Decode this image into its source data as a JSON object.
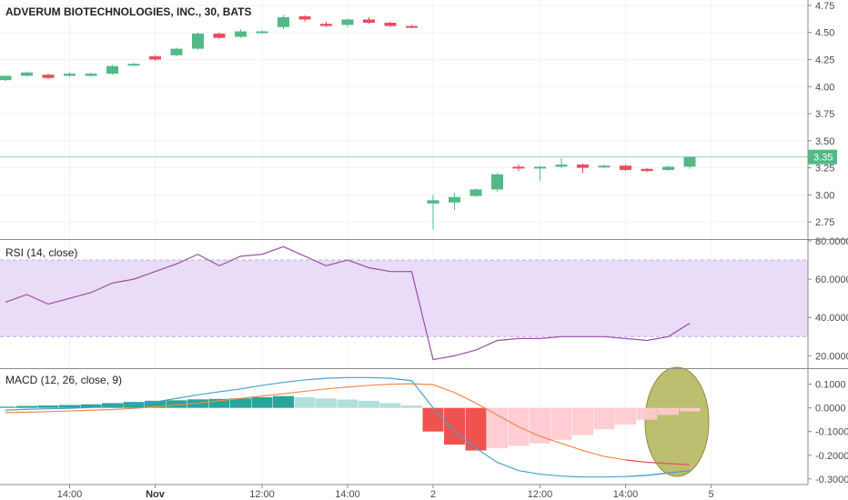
{
  "chart_data": [
    {
      "type": "candlestick",
      "title": "ADVERUM BIOTECHNOLOGIES, INC., 30, BATS",
      "ylim": [
        2.6,
        4.8
      ],
      "y_ticks": [
        "2.75",
        "3.00",
        "3.25",
        "3.50",
        "3.75",
        "4.00",
        "4.25",
        "4.50",
        "4.75"
      ],
      "last_price_label": "3.35",
      "last_price": 3.35,
      "candles": [
        {
          "o": 4.06,
          "h": 4.1,
          "l": 4.05,
          "c": 4.1
        },
        {
          "o": 4.1,
          "h": 4.14,
          "l": 4.09,
          "c": 4.13
        },
        {
          "o": 4.11,
          "h": 4.12,
          "l": 4.07,
          "c": 4.08
        },
        {
          "o": 4.1,
          "h": 4.13,
          "l": 4.09,
          "c": 4.12
        },
        {
          "o": 4.1,
          "h": 4.13,
          "l": 4.09,
          "c": 4.12
        },
        {
          "o": 4.12,
          "h": 4.2,
          "l": 4.11,
          "c": 4.19
        },
        {
          "o": 4.2,
          "h": 4.22,
          "l": 4.19,
          "c": 4.21
        },
        {
          "o": 4.28,
          "h": 4.29,
          "l": 4.24,
          "c": 4.25
        },
        {
          "o": 4.29,
          "h": 4.36,
          "l": 4.28,
          "c": 4.35
        },
        {
          "o": 4.35,
          "h": 4.5,
          "l": 4.34,
          "c": 4.49
        },
        {
          "o": 4.49,
          "h": 4.5,
          "l": 4.44,
          "c": 4.45
        },
        {
          "o": 4.46,
          "h": 4.53,
          "l": 4.45,
          "c": 4.51
        },
        {
          "o": 4.5,
          "h": 4.52,
          "l": 4.49,
          "c": 4.51
        },
        {
          "o": 4.55,
          "h": 4.66,
          "l": 4.53,
          "c": 4.64
        },
        {
          "o": 4.65,
          "h": 4.66,
          "l": 4.6,
          "c": 4.62
        },
        {
          "o": 4.58,
          "h": 4.6,
          "l": 4.55,
          "c": 4.56
        },
        {
          "o": 4.57,
          "h": 4.63,
          "l": 4.55,
          "c": 4.62
        },
        {
          "o": 4.62,
          "h": 4.64,
          "l": 4.58,
          "c": 4.59
        },
        {
          "o": 4.59,
          "h": 4.6,
          "l": 4.55,
          "c": 4.56
        },
        {
          "o": 4.56,
          "h": 4.57,
          "l": 4.54,
          "c": 4.55
        },
        {
          "o": 2.92,
          "h": 3.0,
          "l": 2.68,
          "c": 2.95
        },
        {
          "o": 2.93,
          "h": 3.02,
          "l": 2.86,
          "c": 2.98
        },
        {
          "o": 2.99,
          "h": 3.06,
          "l": 2.98,
          "c": 3.05
        },
        {
          "o": 3.05,
          "h": 3.2,
          "l": 3.03,
          "c": 3.19
        },
        {
          "o": 3.26,
          "h": 3.28,
          "l": 3.22,
          "c": 3.25
        },
        {
          "o": 3.25,
          "h": 3.27,
          "l": 3.13,
          "c": 3.26
        },
        {
          "o": 3.26,
          "h": 3.34,
          "l": 3.25,
          "c": 3.28
        },
        {
          "o": 3.28,
          "h": 3.29,
          "l": 3.2,
          "c": 3.25
        },
        {
          "o": 3.27,
          "h": 3.28,
          "l": 3.25,
          "c": 3.27
        },
        {
          "o": 3.27,
          "h": 3.28,
          "l": 3.22,
          "c": 3.23
        },
        {
          "o": 3.24,
          "h": 3.25,
          "l": 3.21,
          "c": 3.22
        },
        {
          "o": 3.23,
          "h": 3.27,
          "l": 3.22,
          "c": 3.26
        },
        {
          "o": 3.26,
          "h": 3.35,
          "l": 3.24,
          "c": 3.35
        }
      ]
    },
    {
      "type": "line",
      "title": "RSI (14, close)",
      "ylim": [
        14,
        80
      ],
      "y_ticks": [
        "20.0000",
        "40.0000",
        "60.0000",
        "80.0000"
      ],
      "band": [
        30,
        70
      ],
      "values": [
        48,
        52,
        47,
        50,
        53,
        58,
        60,
        64,
        68,
        73,
        67,
        72,
        73,
        77,
        72,
        67,
        70,
        66,
        64,
        64,
        18,
        20,
        23,
        28,
        29,
        29,
        30,
        30,
        30,
        29,
        28,
        30,
        37
      ]
    },
    {
      "type": "bar+line",
      "title": "MACD (12, 26, close, 9)",
      "ylim": [
        -0.32,
        0.16
      ],
      "y_ticks": [
        "-0.3000",
        "-0.2000",
        "-0.1000",
        "0.0000",
        "0.1000"
      ],
      "histogram": [
        0.005,
        0.008,
        0.01,
        0.012,
        0.015,
        0.02,
        0.025,
        0.03,
        0.032,
        0.036,
        0.038,
        0.04,
        0.045,
        0.05,
        0.045,
        0.04,
        0.035,
        0.03,
        0.02,
        0.01,
        -0.1,
        -0.155,
        -0.18,
        -0.17,
        -0.16,
        -0.15,
        -0.135,
        -0.115,
        -0.09,
        -0.07,
        -0.05,
        -0.03,
        -0.015
      ],
      "macd": [
        -0.01,
        -0.006,
        -0.004,
        -0.002,
        0.002,
        0.008,
        0.015,
        0.025,
        0.04,
        0.055,
        0.068,
        0.08,
        0.095,
        0.108,
        0.118,
        0.125,
        0.128,
        0.128,
        0.125,
        0.115,
        0.0,
        -0.1,
        -0.17,
        -0.23,
        -0.265,
        -0.28,
        -0.288,
        -0.292,
        -0.292,
        -0.29,
        -0.285,
        -0.275,
        -0.265
      ],
      "signal": [
        -0.02,
        -0.018,
        -0.016,
        -0.013,
        -0.01,
        -0.007,
        -0.002,
        0.005,
        0.012,
        0.02,
        0.03,
        0.04,
        0.05,
        0.06,
        0.07,
        0.08,
        0.088,
        0.095,
        0.1,
        0.102,
        0.098,
        0.065,
        0.02,
        -0.03,
        -0.08,
        -0.12,
        -0.15,
        -0.18,
        -0.205,
        -0.22,
        -0.23,
        -0.235,
        -0.24
      ]
    }
  ],
  "x_axis": [
    {
      "label": "14:00",
      "bold": false,
      "index": 3
    },
    {
      "label": "Nov",
      "bold": true,
      "index": 7
    },
    {
      "label": "12:00",
      "bold": false,
      "index": 12
    },
    {
      "label": "14:00",
      "bold": false,
      "index": 16
    },
    {
      "label": "2",
      "bold": false,
      "index": 20
    },
    {
      "label": "12:00",
      "bold": false,
      "index": 25
    },
    {
      "label": "14:00",
      "bold": false,
      "index": 29
    },
    {
      "label": "5",
      "bold": false,
      "index": 33
    }
  ],
  "annotation": "olive ellipse highlighting latest MACD histogram bars",
  "colors": {
    "up": "#53b987",
    "down": "#eb4d5c",
    "hist_pos_strong": "#26a69a",
    "hist_pos_weak": "#b2dfdb",
    "hist_neg_strong": "#ef5350",
    "hist_neg_weak": "#ffcdd2",
    "macd": "#4a9fd0",
    "signal": "#f2884b",
    "rsi": "#9b4fa8",
    "rsi_band": "#e9dcf6",
    "price_line": "#8fd1b3",
    "ellipse": "#b5b761"
  }
}
